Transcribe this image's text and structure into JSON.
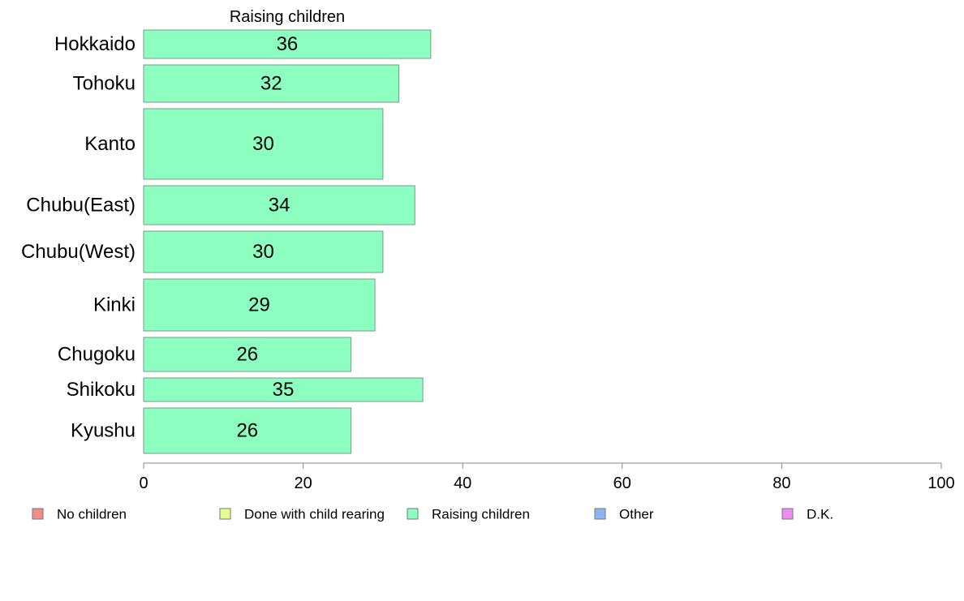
{
  "chart_data": {
    "type": "bar",
    "orientation": "horizontal",
    "title": "Raising children",
    "xlabel": "",
    "ylabel": "",
    "categories": [
      "Hokkaido",
      "Tohoku",
      "Kanto",
      "Chubu(East)",
      "Chubu(West)",
      "Kinki",
      "Chugoku",
      "Shikoku",
      "Kyushu"
    ],
    "series": [
      {
        "name": "Raising children",
        "color": "#8cffc0",
        "values": [
          36,
          32,
          30,
          34,
          30,
          29,
          26,
          35,
          26
        ],
        "labels": [
          "36",
          "32",
          "30",
          "34",
          "30",
          "29",
          "26",
          "35",
          "26"
        ]
      }
    ],
    "xlim": [
      0,
      100
    ],
    "xticks": [
      0,
      20,
      40,
      60,
      80,
      100
    ],
    "xtick_labels": [
      "0",
      "20",
      "40",
      "60",
      "80",
      "100"
    ],
    "grid": false,
    "legend_position": "bottom",
    "legend": [
      {
        "label": "No children",
        "color": "#f08c8c"
      },
      {
        "label": "Done with child rearing",
        "color": "#e6ff8c"
      },
      {
        "label": "Raising children",
        "color": "#8cffc0"
      },
      {
        "label": "Other",
        "color": "#8cb4f0"
      },
      {
        "label": "D.K.",
        "color": "#f08cf0"
      }
    ]
  }
}
